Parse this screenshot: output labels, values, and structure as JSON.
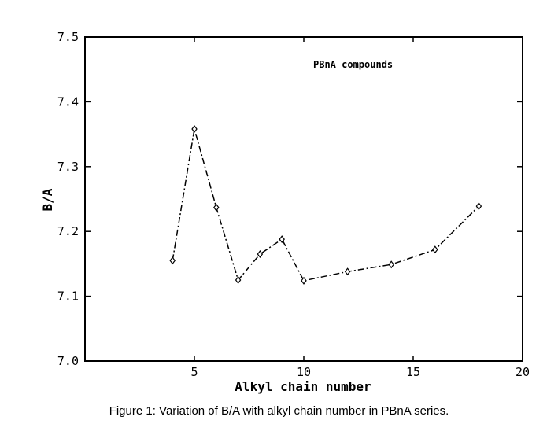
{
  "caption": "Figure 1: Variation of B/A with alkyl chain number in PBnA series.",
  "chart_data": {
    "type": "line",
    "xlabel": "Alkyl chain number",
    "ylabel": "B/A",
    "annotation": "PBnA compounds",
    "xlim": [
      0,
      20
    ],
    "ylim": [
      7.0,
      7.5
    ],
    "xticks": [
      5,
      10,
      15,
      20
    ],
    "yticks": [
      7.0,
      7.1,
      7.2,
      7.3,
      7.4,
      7.5
    ],
    "xtick_labels": [
      "5",
      "10",
      "15",
      "20"
    ],
    "ytick_labels": [
      "7.0",
      "7.1",
      "7.2",
      "7.3",
      "7.4",
      "7.5"
    ],
    "grid": false,
    "series": [
      {
        "x": [
          4,
          5,
          6,
          7,
          8,
          9,
          10,
          12,
          14,
          16,
          18
        ],
        "y": [
          7.155,
          7.358,
          7.237,
          7.125,
          7.165,
          7.188,
          7.124,
          7.138,
          7.149,
          7.172,
          7.239
        ],
        "line_style": "dash-dot",
        "marker": "diamond",
        "color": "#000000"
      }
    ]
  }
}
